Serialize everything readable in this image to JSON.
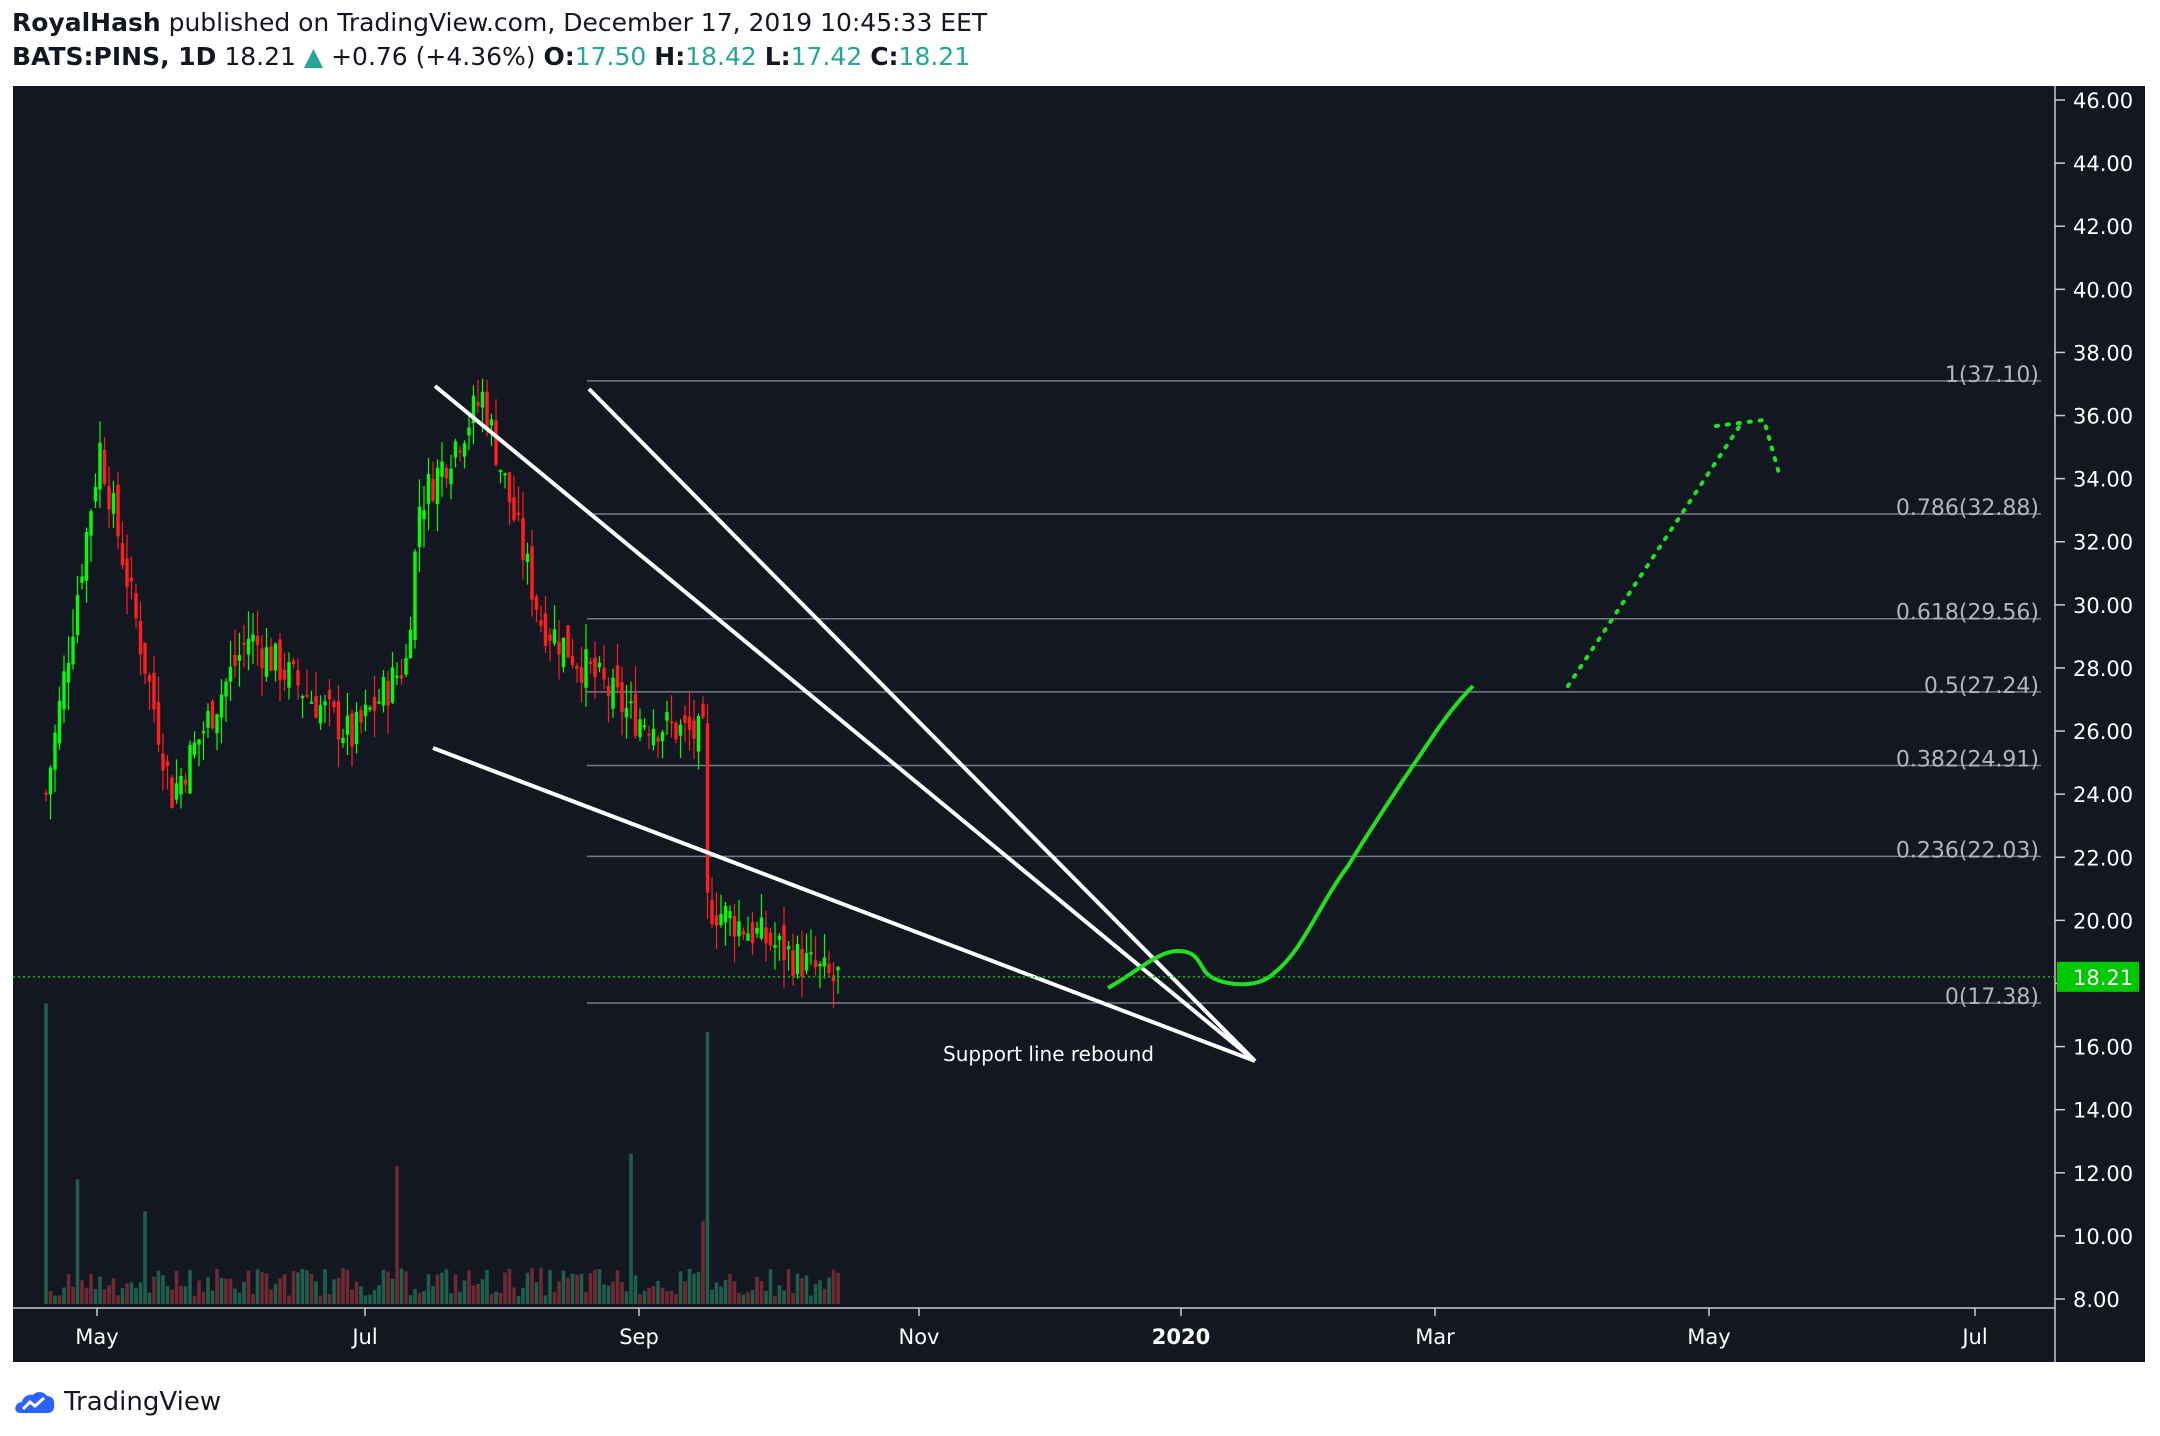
{
  "header": {
    "author": "RoyalHash",
    "published_text": "published on TradingView.com, December 17, 2019 10:45:33 EET",
    "symbol": "BATS:PINS, 1D",
    "last": "18.21",
    "change": "+0.76 (+4.36%)",
    "open_label": "O:",
    "open": "17.50",
    "high_label": "H:",
    "high": "18.42",
    "low_label": "L:",
    "low": "17.42",
    "close_label": "C:",
    "close": "18.21"
  },
  "footer": {
    "brand": "TradingView"
  },
  "colors": {
    "background": "#131722",
    "up": "#00ff00",
    "down": "#ff1e1e",
    "fib_line": "#787b86",
    "current_price": "#00c800",
    "annotation": "#ffffff",
    "projection": "#20e020"
  },
  "chart_data": {
    "type": "candlestick",
    "y_axis": {
      "min": 8,
      "max": 46,
      "ticks": [
        "8.00",
        "10.00",
        "12.00",
        "14.00",
        "16.00",
        "18.00",
        "20.00",
        "22.00",
        "24.00",
        "26.00",
        "28.00",
        "30.00",
        "32.00",
        "34.00",
        "36.00",
        "38.00",
        "40.00",
        "42.00",
        "44.00",
        "46.00"
      ]
    },
    "x_axis": {
      "ticks": [
        "May",
        "Jul",
        "Sep",
        "Nov",
        "2020",
        "Mar",
        "May",
        "Jul"
      ]
    },
    "current_price": {
      "value": 18.21,
      "label": "18.21"
    },
    "fib_levels": [
      {
        "ratio": "1",
        "price": 37.1,
        "label": "1(37.10)"
      },
      {
        "ratio": "0.786",
        "price": 32.88,
        "label": "0.786(32.88)"
      },
      {
        "ratio": "0.618",
        "price": 29.56,
        "label": "0.618(29.56)"
      },
      {
        "ratio": "0.5",
        "price": 27.24,
        "label": "0.5(27.24)"
      },
      {
        "ratio": "0.382",
        "price": 24.91,
        "label": "0.382(24.91)"
      },
      {
        "ratio": "0.236",
        "price": 22.03,
        "label": "0.236(22.03)"
      },
      {
        "ratio": "0",
        "price": 17.38,
        "label": "0(17.38)"
      }
    ],
    "annotation": {
      "text": "Support line rebound"
    },
    "price_segments": [
      {
        "from": 0,
        "to": 12,
        "start": 24.0,
        "end": 35.0
      },
      {
        "from": 12,
        "to": 28,
        "start": 35.0,
        "end": 24.0
      },
      {
        "from": 28,
        "to": 45,
        "start": 24.0,
        "end": 29.0
      },
      {
        "from": 45,
        "to": 68,
        "start": 29.0,
        "end": 25.8
      },
      {
        "from": 68,
        "to": 80,
        "start": 25.8,
        "end": 28.2
      },
      {
        "from": 80,
        "to": 83,
        "start": 28.2,
        "end": 33.2
      },
      {
        "from": 83,
        "to": 97,
        "start": 33.2,
        "end": 36.6
      },
      {
        "from": 97,
        "to": 110,
        "start": 36.6,
        "end": 29.5
      },
      {
        "from": 110,
        "to": 130,
        "start": 29.5,
        "end": 26.5
      },
      {
        "from": 130,
        "to": 146,
        "start": 26.5,
        "end": 25.8
      },
      {
        "from": 146,
        "to": 147,
        "start": 25.8,
        "end": 20.5
      },
      {
        "from": 147,
        "to": 176,
        "start": 20.5,
        "end": 18.0
      }
    ],
    "volume_spikes": [
      {
        "index": 0,
        "value": 9.4
      },
      {
        "index": 7,
        "value": 3.9
      },
      {
        "index": 22,
        "value": 2.9
      },
      {
        "index": 78,
        "value": 4.3
      },
      {
        "index": 130,
        "value": 4.7
      },
      {
        "index": 147,
        "value": 8.5
      },
      {
        "index": 146,
        "value": 2.6
      }
    ]
  }
}
